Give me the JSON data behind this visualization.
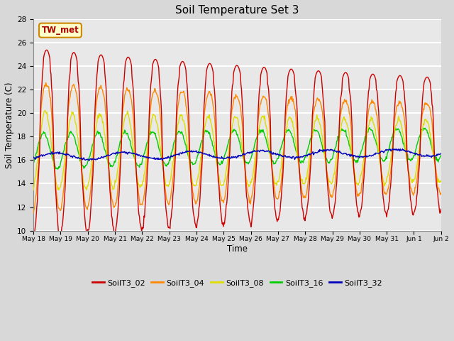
{
  "title": "Soil Temperature Set 3",
  "xlabel": "Time",
  "ylabel": "Soil Temperature (C)",
  "ylim": [
    10,
    28
  ],
  "yticks": [
    10,
    12,
    14,
    16,
    18,
    20,
    22,
    24,
    26,
    28
  ],
  "annotation": "TW_met",
  "series_colors": {
    "SoilT3_02": "#cc0000",
    "SoilT3_04": "#ff8800",
    "SoilT3_08": "#dddd00",
    "SoilT3_16": "#00cc00",
    "SoilT3_32": "#0000bb"
  },
  "fig_bg_color": "#d8d8d8",
  "plot_bg_color": "#e8e8e8",
  "grid_color": "#ffffff",
  "n_points_per_day": 48,
  "n_days": 15
}
